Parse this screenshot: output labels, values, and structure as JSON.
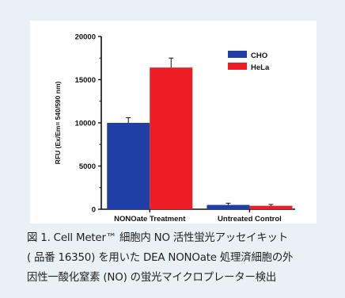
{
  "colors": {
    "background": "#e9f1f6",
    "cho": "#1f3fa6",
    "hela": "#ee1c24",
    "axis": "#111111"
  },
  "chart_data": {
    "type": "bar",
    "categories": [
      "NONOate Treatment",
      "Untreated Control"
    ],
    "series": [
      {
        "name": "CHO",
        "values": [
          10000,
          500
        ],
        "error": [
          600,
          200
        ]
      },
      {
        "name": "HeLa",
        "values": [
          16400,
          400
        ],
        "error": [
          1100,
          150
        ]
      }
    ],
    "title": "",
    "xlabel": "",
    "ylabel": "RFU (Ex/Em= 540/590 nm)",
    "ylim": [
      0,
      20000
    ],
    "yticks": [
      "0",
      "5000",
      "10000",
      "15000",
      "20000"
    ],
    "ytick_values": [
      0,
      5000,
      10000,
      15000,
      20000
    ],
    "legend_position": "top-right",
    "grid": false
  },
  "caption": {
    "lines": [
      "図 1. Cell Meter™ 細胞内 NO 活性蛍光アッセイキット",
      "( 品番 16350) を用いた DEA NONOate 処理済細胞の外",
      "因性一酸化窒素 (NO) の蛍光マイクロプレーター検出"
    ]
  }
}
